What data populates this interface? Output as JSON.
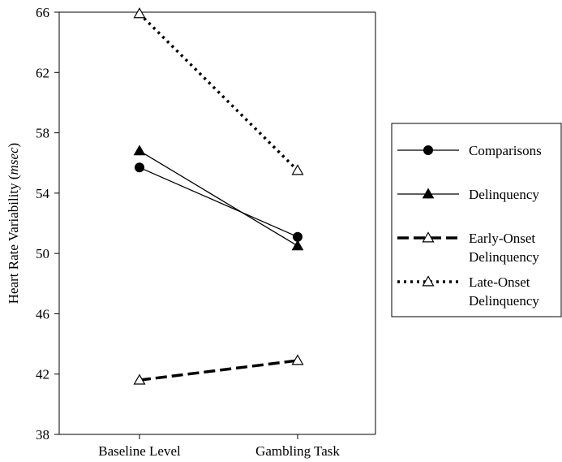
{
  "chart_data": {
    "type": "line",
    "categories": [
      "Baseline Level",
      "Gambling Task"
    ],
    "ylabel": "Heart Rate Variability (msec)",
    "ylabel_plain": "Heart Rate Variability (",
    "ylabel_unit": "msec",
    "ylabel_close": ")",
    "ylim": [
      38,
      66
    ],
    "yticks": [
      38,
      42,
      46,
      50,
      54,
      58,
      62,
      66
    ],
    "grid": false,
    "legend_placement": "right",
    "series": [
      {
        "name": "Comparisons",
        "values": [
          55.7,
          51.1
        ],
        "line": "solid",
        "marker": "filled-circle"
      },
      {
        "name": "Delinquency",
        "values": [
          56.8,
          50.5
        ],
        "line": "solid",
        "marker": "filled-triangle"
      },
      {
        "name": "Early-Onset Delinquency",
        "name_lines": [
          "Early-Onset",
          "Delinquency"
        ],
        "values": [
          41.6,
          42.9
        ],
        "line": "dashed",
        "marker": "open-triangle"
      },
      {
        "name": "Late-Onset Delinquency",
        "name_lines": [
          "Late-Onset",
          "Delinquency"
        ],
        "values": [
          65.9,
          55.5
        ],
        "line": "dotted",
        "marker": "open-triangle"
      }
    ]
  }
}
